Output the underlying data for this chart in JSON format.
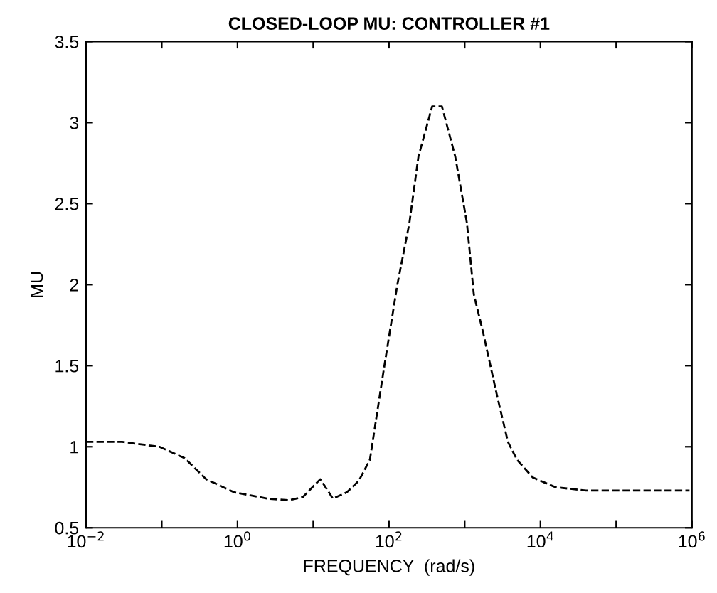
{
  "chart_data": {
    "type": "line",
    "title": "CLOSED-LOOP MU: CONTROLLER #1",
    "xlabel": "FREQUENCY  (rad/s)",
    "ylabel": "MU",
    "log": "x",
    "grid": false,
    "legend": false,
    "marker": "none",
    "line_style": "dashed",
    "xlim": [
      0.01,
      1000000
    ],
    "ylim": [
      0.5,
      3.5
    ],
    "xticks": [
      {
        "value": 0.01,
        "label": "10$^{−2}$"
      },
      {
        "value": 0.1,
        "label": null
      },
      {
        "value": 1,
        "label": "10$^{0}$"
      },
      {
        "value": 10,
        "label": null
      },
      {
        "value": 100,
        "label": "10$^{2}$"
      },
      {
        "value": 1000,
        "label": null
      },
      {
        "value": 10000,
        "label": "10$^{4}$"
      },
      {
        "value": 100000,
        "label": null
      },
      {
        "value": 1000000,
        "label": "10$^{6}$"
      }
    ],
    "yticks": [
      0.5,
      1,
      1.5,
      2,
      2.5,
      3,
      3.5
    ],
    "series": [
      {
        "color": "#000000",
        "x": [
          0.01,
          0.03,
          0.093,
          0.2,
          0.385,
          0.89,
          2.5,
          4.8,
          7.3,
          12.4,
          18.2,
          28,
          40,
          56,
          85,
          129,
          186,
          245,
          372,
          500,
          750,
          1070,
          1320,
          1740,
          2630,
          3720,
          4900,
          7940,
          15800,
          40000,
          200000,
          930000
        ],
        "values": [
          1.03,
          1.03,
          1.0,
          0.93,
          0.8,
          0.72,
          0.68,
          0.67,
          0.69,
          0.8,
          0.68,
          0.72,
          0.79,
          0.92,
          1.47,
          2.0,
          2.38,
          2.79,
          3.1,
          3.1,
          2.79,
          2.38,
          1.94,
          1.71,
          1.33,
          1.03,
          0.92,
          0.81,
          0.75,
          0.73,
          0.73,
          0.73
        ]
      }
    ]
  }
}
